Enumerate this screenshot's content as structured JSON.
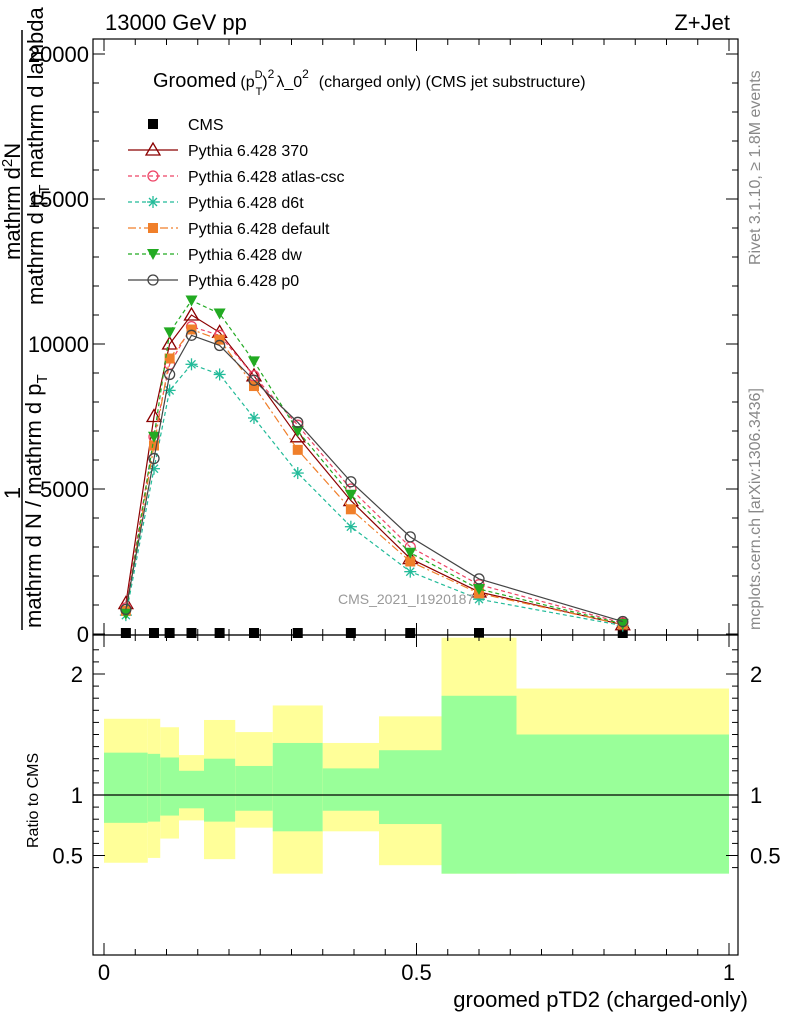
{
  "header": {
    "left": "13000 GeV pp",
    "right": "Z+Jet"
  },
  "side_text": {
    "rivet": "Rivet 3.1.10, ≥ 1.8M events",
    "mcplots": "mcplots.cern.ch [arXiv:1306.3436]"
  },
  "watermark": "CMS_2021_I1920187",
  "chart_data": [
    {
      "type": "line",
      "panel": "main",
      "title": "Groomed (p_T^D)^2 λ_0^2 (charged only) (CMS jet substructure)",
      "title_parts": {
        "lead": "Groomed",
        "p": "(p",
        "sup_D": "D",
        "sub_T": "T",
        "close": ")",
        "sup_2a": "2",
        "lambda": "λ_0",
        "sup_2b": "2",
        "tail": "(charged only) (CMS jet substructure)"
      },
      "ylabel_top": "mathrm d²N",
      "ylabel_top_lines": [
        "mathrm d",
        "N"
      ],
      "ylabel_top_sup": "2",
      "ylabel_top_line2": "mathrm d p_T mathrm d lambda",
      "ylabel_top_line2_parts": [
        "mathrm d p",
        "T",
        " mathrm d lambda"
      ],
      "ylabel_num": "1",
      "ylabel_den": "mathrm d N / mathrm d p_T",
      "ylabel_den_parts": [
        "mathrm d N / mathrm d p",
        "T"
      ],
      "xlim": [
        0,
        1
      ],
      "ylim": [
        0,
        25000
      ],
      "yticks": [
        0,
        5000,
        10000,
        15000,
        20000
      ],
      "ytick_labels": [
        "0",
        "5000",
        "10000",
        "15000",
        "20000"
      ],
      "x": [
        0.035,
        0.08,
        0.105,
        0.14,
        0.185,
        0.24,
        0.31,
        0.395,
        0.49,
        0.6,
        0.83
      ],
      "series": [
        {
          "name": "CMS",
          "color": "#000000",
          "marker": "square",
          "dash": "none",
          "values": [
            0,
            0,
            0,
            0,
            0,
            0,
            0,
            0,
            0,
            0,
            0
          ]
        },
        {
          "name": "Pythia 6.428 370",
          "color": "#8b0000",
          "marker": "triangle-open",
          "dash": "none",
          "values": [
            1050,
            7500,
            10000,
            11000,
            10400,
            8900,
            6800,
            4600,
            2600,
            1450,
            320
          ]
        },
        {
          "name": "Pythia 6.428 atlas-csc",
          "color": "#ee4466",
          "marker": "circle-open",
          "dash": "4,3",
          "values": [
            900,
            6800,
            9300,
            10600,
            10300,
            8900,
            7200,
            5000,
            3000,
            1700,
            380
          ]
        },
        {
          "name": "Pythia 6.428 d6t",
          "color": "#22bb99",
          "marker": "star",
          "dash": "4,3",
          "values": [
            650,
            5700,
            8400,
            9300,
            8950,
            7450,
            5550,
            3700,
            2150,
            1200,
            290
          ]
        },
        {
          "name": "Pythia 6.428 default",
          "color": "#f07f2a",
          "marker": "square",
          "dash": "8,3,2,3",
          "values": [
            800,
            6500,
            9500,
            10500,
            10150,
            8550,
            6350,
            4300,
            2500,
            1400,
            330
          ]
        },
        {
          "name": "Pythia 6.428 dw",
          "color": "#22aa22",
          "marker": "triangle-down",
          "dash": "4,3",
          "values": [
            700,
            6800,
            10400,
            11500,
            11050,
            9400,
            7000,
            4800,
            2800,
            1550,
            350
          ]
        },
        {
          "name": "Pythia 6.428 p0",
          "color": "#444444",
          "marker": "circle-open",
          "dash": "none",
          "values": [
            850,
            6050,
            8950,
            10300,
            9950,
            8750,
            7300,
            5250,
            3350,
            1900,
            430
          ]
        }
      ],
      "legend_position": "top-left"
    },
    {
      "type": "area",
      "panel": "ratio",
      "xlabel": "groomed pTD2 (charged-only)",
      "ylabel": "Ratio to CMS",
      "xlim": [
        0,
        1
      ],
      "ylim": [
        0.35,
        2.3
      ],
      "xticks": [
        0,
        0.5,
        1
      ],
      "xtick_labels": [
        "0",
        "0.5",
        "1"
      ],
      "yticks": [
        0.5,
        1,
        2
      ],
      "ytick_labels": [
        "0.5",
        "1",
        "2"
      ],
      "reference_line": 1,
      "bins": [
        {
          "lo": 0.0,
          "hi": 0.07,
          "inner": [
            0.77,
            1.35
          ],
          "outer": [
            0.44,
            1.63
          ]
        },
        {
          "lo": 0.07,
          "hi": 0.09,
          "inner": [
            0.78,
            1.34
          ],
          "outer": [
            0.48,
            1.63
          ]
        },
        {
          "lo": 0.09,
          "hi": 0.12,
          "inner": [
            0.83,
            1.31
          ],
          "outer": [
            0.64,
            1.56
          ]
        },
        {
          "lo": 0.12,
          "hi": 0.16,
          "inner": [
            0.89,
            1.2
          ],
          "outer": [
            0.79,
            1.33
          ]
        },
        {
          "lo": 0.16,
          "hi": 0.21,
          "inner": [
            0.78,
            1.3
          ],
          "outer": [
            0.47,
            1.62
          ]
        },
        {
          "lo": 0.21,
          "hi": 0.27,
          "inner": [
            0.87,
            1.24
          ],
          "outer": [
            0.73,
            1.52
          ]
        },
        {
          "lo": 0.27,
          "hi": 0.35,
          "inner": [
            0.7,
            1.43
          ],
          "outer": [
            0.35,
            1.74
          ]
        },
        {
          "lo": 0.35,
          "hi": 0.44,
          "inner": [
            0.87,
            1.22
          ],
          "outer": [
            0.7,
            1.43
          ]
        },
        {
          "lo": 0.44,
          "hi": 0.54,
          "inner": [
            0.76,
            1.37
          ],
          "outer": [
            0.42,
            1.65
          ]
        },
        {
          "lo": 0.54,
          "hi": 0.66,
          "inner": [
            0.35,
            1.82
          ],
          "outer": [
            0.35,
            2.3
          ]
        },
        {
          "lo": 0.66,
          "hi": 1.0,
          "inner": [
            0.35,
            1.5
          ],
          "outer": [
            0.62,
            1.88
          ]
        }
      ],
      "band_colors": {
        "inner": "#99ff99",
        "outer": "#ffff99"
      }
    }
  ]
}
